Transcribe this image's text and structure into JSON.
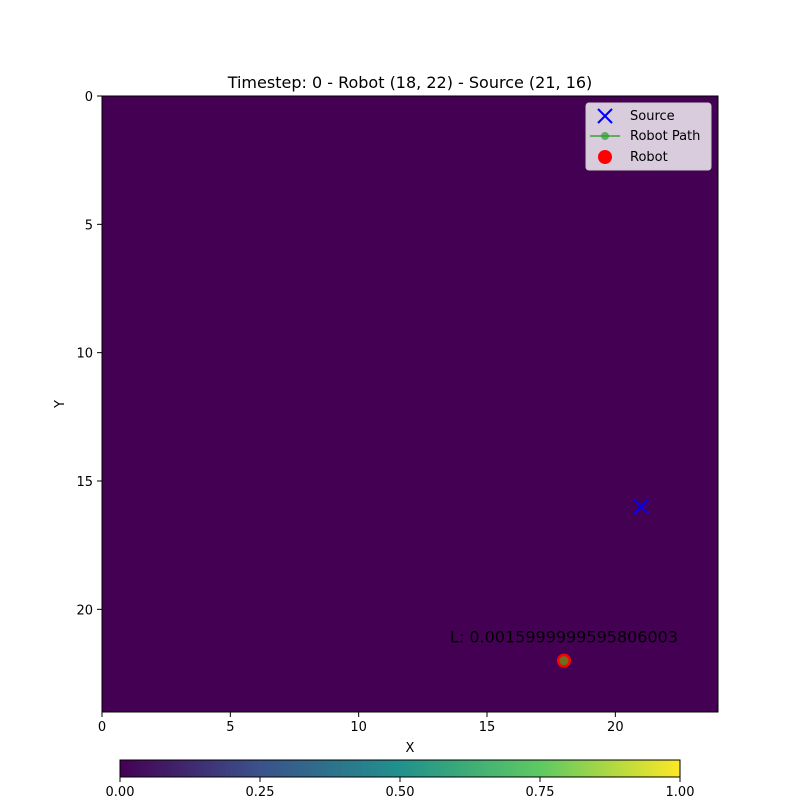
{
  "chart_data": {
    "type": "heatmap",
    "title": "Timestep: 0 - Robot (18, 22) - Source (21, 16)",
    "xlabel": "X",
    "ylabel": "Y",
    "xlim": [
      0,
      24
    ],
    "ylim": [
      24,
      0
    ],
    "y_inverted": true,
    "x_ticks": [
      0,
      5,
      10,
      15,
      20
    ],
    "y_ticks": [
      0,
      5,
      10,
      15,
      20
    ],
    "grid": false,
    "heatmap_value": 0.0,
    "colormap": "viridis",
    "colormap_stops": [
      "#440154",
      "#3b528b",
      "#21918c",
      "#5ec962",
      "#fde725"
    ],
    "colorbar": {
      "orientation": "horizontal",
      "range": [
        0,
        1
      ],
      "ticks": [
        0.0,
        0.25,
        0.5,
        0.75,
        1.0
      ],
      "tick_labels": [
        "0.00",
        "0.25",
        "0.50",
        "0.75",
        "1.00"
      ]
    },
    "source": {
      "x": 21,
      "y": 16,
      "color": "#0000ff"
    },
    "robot": {
      "x": 18,
      "y": 22,
      "color": "#ff0000"
    },
    "robot_path": {
      "x": [
        18
      ],
      "y": [
        22
      ],
      "color": "#2ca02c"
    },
    "annotation": {
      "text": "L: 0.0015999999595806003",
      "x": 18,
      "y": 22
    },
    "legend": {
      "placement": "top-right",
      "entries": [
        {
          "label": "Source",
          "marker": "x",
          "color": "#0000ff"
        },
        {
          "label": "Robot Path",
          "marker": "line-dot",
          "color": "#2ca02c"
        },
        {
          "label": "Robot",
          "marker": "circle",
          "color": "#ff0000"
        }
      ]
    }
  }
}
